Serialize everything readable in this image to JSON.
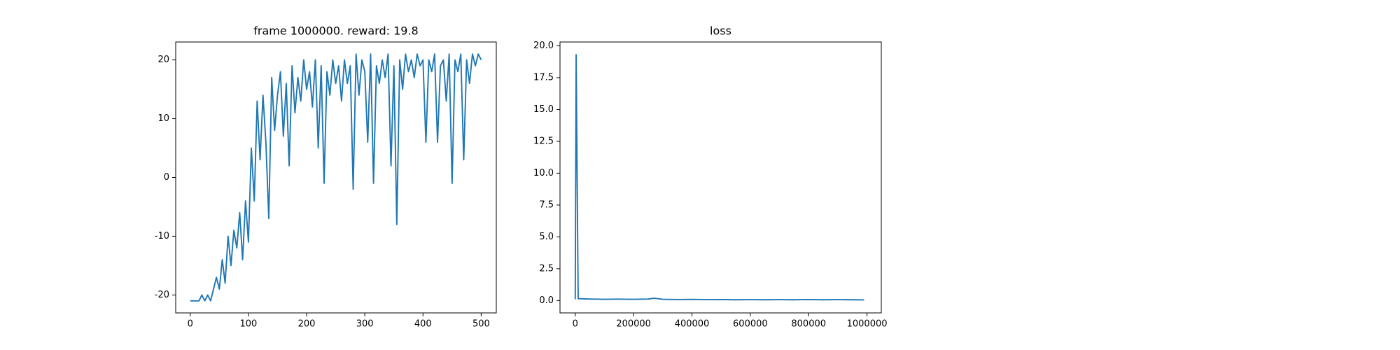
{
  "chart_data": [
    {
      "type": "line",
      "title": "frame 1000000. reward: 19.8",
      "x": [
        0,
        5,
        10,
        15,
        20,
        25,
        30,
        35,
        40,
        45,
        50,
        55,
        60,
        65,
        70,
        75,
        80,
        85,
        90,
        95,
        100,
        105,
        110,
        115,
        120,
        125,
        130,
        135,
        140,
        145,
        150,
        155,
        160,
        165,
        170,
        175,
        180,
        185,
        190,
        195,
        200,
        205,
        210,
        215,
        220,
        225,
        230,
        235,
        240,
        245,
        250,
        255,
        260,
        265,
        270,
        275,
        280,
        285,
        290,
        295,
        300,
        305,
        310,
        315,
        320,
        325,
        330,
        335,
        340,
        345,
        350,
        355,
        360,
        365,
        370,
        375,
        380,
        385,
        390,
        395,
        400,
        405,
        410,
        415,
        420,
        425,
        430,
        435,
        440,
        445,
        450,
        455,
        460,
        465,
        470,
        475,
        480,
        485,
        490,
        495,
        500
      ],
      "series": [
        {
          "color": "#1f77b4",
          "values": [
            -21,
            -21,
            -21,
            -21,
            -20,
            -21,
            -20,
            -21,
            -19,
            -17,
            -19,
            -14,
            -18,
            -10,
            -15,
            -9,
            -12,
            -6,
            -14,
            -4,
            -11,
            5,
            -4,
            13,
            3,
            14,
            6,
            -7,
            17,
            8,
            14,
            18,
            7,
            16,
            2,
            19,
            11,
            17,
            13,
            20,
            15,
            18,
            12,
            20,
            5,
            19,
            -1,
            18,
            14,
            20,
            16,
            19,
            13,
            20,
            16,
            19,
            -2,
            21,
            14,
            20,
            18,
            6,
            21,
            -1,
            19,
            16,
            20,
            17,
            21,
            2,
            19,
            -8,
            20,
            15,
            21,
            18,
            20,
            17,
            21,
            19,
            20,
            6,
            20,
            18,
            21,
            6,
            19,
            20,
            13,
            21,
            -1,
            20,
            18,
            21,
            3,
            20,
            16,
            21,
            19,
            21,
            20
          ]
        }
      ],
      "xlim": [
        -25,
        526
      ],
      "ylim": [
        -23.05,
        23.05
      ],
      "xticks": [
        0,
        100,
        200,
        300,
        400,
        500
      ],
      "yticks": [
        -20,
        -10,
        0,
        10,
        20
      ]
    },
    {
      "type": "line",
      "title": "loss",
      "x": [
        0,
        3000,
        10000,
        50000,
        100000,
        150000,
        200000,
        250000,
        270000,
        300000,
        350000,
        400000,
        450000,
        500000,
        550000,
        600000,
        650000,
        700000,
        750000,
        800000,
        850000,
        900000,
        950000,
        990000
      ],
      "series": [
        {
          "color": "#1f77b4",
          "values": [
            0.1,
            19.3,
            0.15,
            0.12,
            0.1,
            0.11,
            0.1,
            0.12,
            0.18,
            0.1,
            0.08,
            0.09,
            0.07,
            0.08,
            0.06,
            0.07,
            0.06,
            0.07,
            0.06,
            0.08,
            0.06,
            0.07,
            0.06,
            0.05
          ]
        }
      ],
      "xlim": [
        -52300,
        1049000
      ],
      "ylim": [
        -0.97,
        20.3
      ],
      "xticks": [
        0,
        200000,
        400000,
        600000,
        800000,
        1000000
      ],
      "yticks": [
        {
          "value": 0,
          "label": "0.0"
        },
        2.5,
        {
          "value": 5,
          "label": "5.0"
        },
        7.5,
        {
          "value": 10,
          "label": "10.0"
        },
        12.5,
        {
          "value": 15,
          "label": "15.0"
        },
        17.5,
        {
          "value": 20,
          "label": "20.0"
        }
      ]
    }
  ]
}
